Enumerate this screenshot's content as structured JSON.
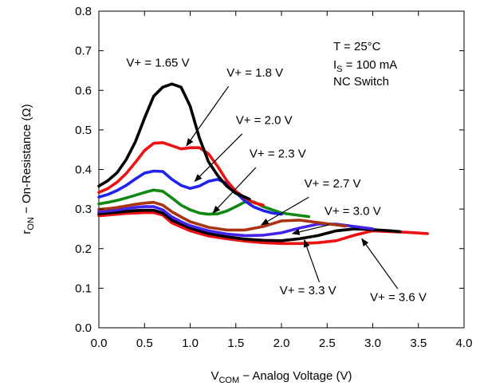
{
  "chart_data": {
    "type": "line",
    "xlabel": "V",
    "xlabel_sub": "COM",
    "xlabel_rest": " − Analog Voltage (V)",
    "ylabel": "r",
    "ylabel_sub": "ON",
    "ylabel_rest": " − On-Resistance (Ω)",
    "xlim": [
      0,
      4.0
    ],
    "ylim": [
      0,
      0.8
    ],
    "xticks": [
      "0.0",
      "0.5",
      "1.0",
      "1.5",
      "2.0",
      "2.5",
      "3.0",
      "3.5",
      "4.0"
    ],
    "yticks": [
      "0.0",
      "0.1",
      "0.2",
      "0.3",
      "0.4",
      "0.5",
      "0.6",
      "0.7",
      "0.8"
    ],
    "grid": false,
    "conditions": {
      "line1": "T = 25°C",
      "line2_main": "I",
      "line2_sub": "S",
      "line2_rest": " = 100 mA",
      "line3": "NC Switch"
    },
    "series": [
      {
        "name": "V+ = 3.6 V",
        "color": "#ee1111",
        "x": [
          0,
          0.1,
          0.2,
          0.3,
          0.4,
          0.5,
          0.6,
          0.7,
          0.8,
          0.9,
          1.0,
          1.2,
          1.4,
          1.6,
          1.8,
          2.0,
          2.2,
          2.4,
          2.6,
          2.8,
          3.0,
          3.2,
          3.4,
          3.6
        ],
        "y": [
          0.283,
          0.285,
          0.287,
          0.289,
          0.29,
          0.291,
          0.291,
          0.285,
          0.265,
          0.255,
          0.245,
          0.232,
          0.225,
          0.219,
          0.215,
          0.213,
          0.213,
          0.215,
          0.22,
          0.234,
          0.245,
          0.243,
          0.241,
          0.238
        ]
      },
      {
        "name": "V+ = 3.3 V",
        "color": "#000000",
        "x": [
          0,
          0.1,
          0.2,
          0.3,
          0.4,
          0.5,
          0.6,
          0.7,
          0.8,
          0.9,
          1.0,
          1.2,
          1.4,
          1.6,
          1.8,
          2.0,
          2.2,
          2.4,
          2.6,
          2.8,
          3.0,
          3.2,
          3.3
        ],
        "y": [
          0.288,
          0.29,
          0.292,
          0.294,
          0.296,
          0.297,
          0.297,
          0.29,
          0.272,
          0.262,
          0.252,
          0.238,
          0.23,
          0.224,
          0.221,
          0.22,
          0.225,
          0.233,
          0.245,
          0.25,
          0.248,
          0.245,
          0.243
        ]
      },
      {
        "name": "V+ = 3.0 V",
        "color": "#4422ee",
        "x": [
          0,
          0.1,
          0.2,
          0.3,
          0.4,
          0.5,
          0.6,
          0.7,
          0.8,
          0.9,
          1.0,
          1.2,
          1.4,
          1.6,
          1.8,
          2.0,
          2.2,
          2.4,
          2.6,
          2.8,
          3.0
        ],
        "y": [
          0.293,
          0.295,
          0.298,
          0.301,
          0.304,
          0.306,
          0.306,
          0.298,
          0.28,
          0.268,
          0.258,
          0.245,
          0.237,
          0.233,
          0.234,
          0.24,
          0.252,
          0.262,
          0.262,
          0.256,
          0.25
        ]
      },
      {
        "name": "V+ = 2.7 V",
        "color": "#aa3311",
        "x": [
          0,
          0.1,
          0.2,
          0.3,
          0.4,
          0.5,
          0.6,
          0.7,
          0.8,
          0.9,
          1.0,
          1.2,
          1.4,
          1.6,
          1.8,
          2.0,
          2.2,
          2.4,
          2.6,
          2.7
        ],
        "y": [
          0.299,
          0.301,
          0.304,
          0.308,
          0.312,
          0.315,
          0.317,
          0.31,
          0.293,
          0.28,
          0.268,
          0.254,
          0.247,
          0.247,
          0.256,
          0.27,
          0.272,
          0.266,
          0.26,
          0.257
        ]
      },
      {
        "name": "V+ = 2.3 V",
        "color": "#118811",
        "x": [
          0,
          0.1,
          0.2,
          0.3,
          0.4,
          0.5,
          0.6,
          0.7,
          0.8,
          0.9,
          1.0,
          1.1,
          1.2,
          1.3,
          1.4,
          1.5,
          1.6,
          1.7,
          1.8,
          2.0,
          2.2,
          2.3
        ],
        "y": [
          0.313,
          0.317,
          0.322,
          0.328,
          0.335,
          0.342,
          0.348,
          0.345,
          0.328,
          0.31,
          0.298,
          0.29,
          0.287,
          0.288,
          0.295,
          0.306,
          0.318,
          0.318,
          0.306,
          0.29,
          0.284,
          0.281
        ]
      },
      {
        "name": "V+ = 2.0 V",
        "color": "#2222ee",
        "x": [
          0,
          0.1,
          0.2,
          0.3,
          0.4,
          0.5,
          0.6,
          0.7,
          0.8,
          0.9,
          1.0,
          1.1,
          1.2,
          1.3,
          1.4,
          1.5,
          1.6,
          1.7,
          1.8,
          1.9,
          2.0
        ],
        "y": [
          0.33,
          0.337,
          0.347,
          0.36,
          0.376,
          0.391,
          0.396,
          0.395,
          0.375,
          0.36,
          0.352,
          0.358,
          0.37,
          0.375,
          0.365,
          0.342,
          0.32,
          0.305,
          0.296,
          0.29,
          0.287
        ]
      },
      {
        "name": "V+ = 1.8 V",
        "color": "#ee1111",
        "x": [
          0,
          0.1,
          0.2,
          0.3,
          0.4,
          0.5,
          0.6,
          0.7,
          0.8,
          0.9,
          1.0,
          1.1,
          1.2,
          1.3,
          1.4,
          1.5,
          1.6,
          1.7,
          1.8
        ],
        "y": [
          0.342,
          0.352,
          0.368,
          0.39,
          0.418,
          0.448,
          0.466,
          0.468,
          0.46,
          0.452,
          0.455,
          0.455,
          0.44,
          0.408,
          0.372,
          0.345,
          0.328,
          0.316,
          0.31
        ]
      },
      {
        "name": "V+ = 1.65 V",
        "color": "#000000",
        "x": [
          0,
          0.1,
          0.2,
          0.3,
          0.4,
          0.5,
          0.6,
          0.7,
          0.8,
          0.9,
          1.0,
          1.1,
          1.2,
          1.3,
          1.4,
          1.5,
          1.6,
          1.65
        ],
        "y": [
          0.358,
          0.372,
          0.392,
          0.425,
          0.47,
          0.53,
          0.585,
          0.608,
          0.616,
          0.608,
          0.56,
          0.48,
          0.42,
          0.385,
          0.358,
          0.34,
          0.33,
          0.325
        ]
      }
    ],
    "annotations": [
      {
        "text": "V+ = 1.65 V",
        "tx": 0.3,
        "ty": 0.66,
        "arrow": null
      },
      {
        "text": "V+ = 1.8 V",
        "tx": 1.4,
        "ty": 0.635,
        "arrow": [
          1.42,
          0.61,
          0.96,
          0.46
        ]
      },
      {
        "text": "V+ = 2.0 V",
        "tx": 1.5,
        "ty": 0.515,
        "arrow": [
          1.57,
          0.49,
          1.05,
          0.37
        ]
      },
      {
        "text": "V+ = 2.3 V",
        "tx": 1.65,
        "ty": 0.43,
        "arrow": [
          1.72,
          0.405,
          1.25,
          0.29
        ]
      },
      {
        "text": "V+ = 2.7 V",
        "tx": 2.25,
        "ty": 0.355,
        "arrow": [
          2.3,
          0.33,
          1.78,
          0.26
        ]
      },
      {
        "text": "V+ = 3.0 V",
        "tx": 2.47,
        "ty": 0.285,
        "arrow": [
          2.52,
          0.26,
          2.12,
          0.238
        ]
      },
      {
        "text": "V+ = 3.3 V",
        "tx": 1.98,
        "ty": 0.085,
        "arrow": [
          2.42,
          0.112,
          2.25,
          0.222
        ]
      },
      {
        "text": "V+ = 3.6 V",
        "tx": 2.97,
        "ty": 0.068,
        "arrow": [
          3.3,
          0.09,
          2.88,
          0.225
        ]
      }
    ]
  }
}
